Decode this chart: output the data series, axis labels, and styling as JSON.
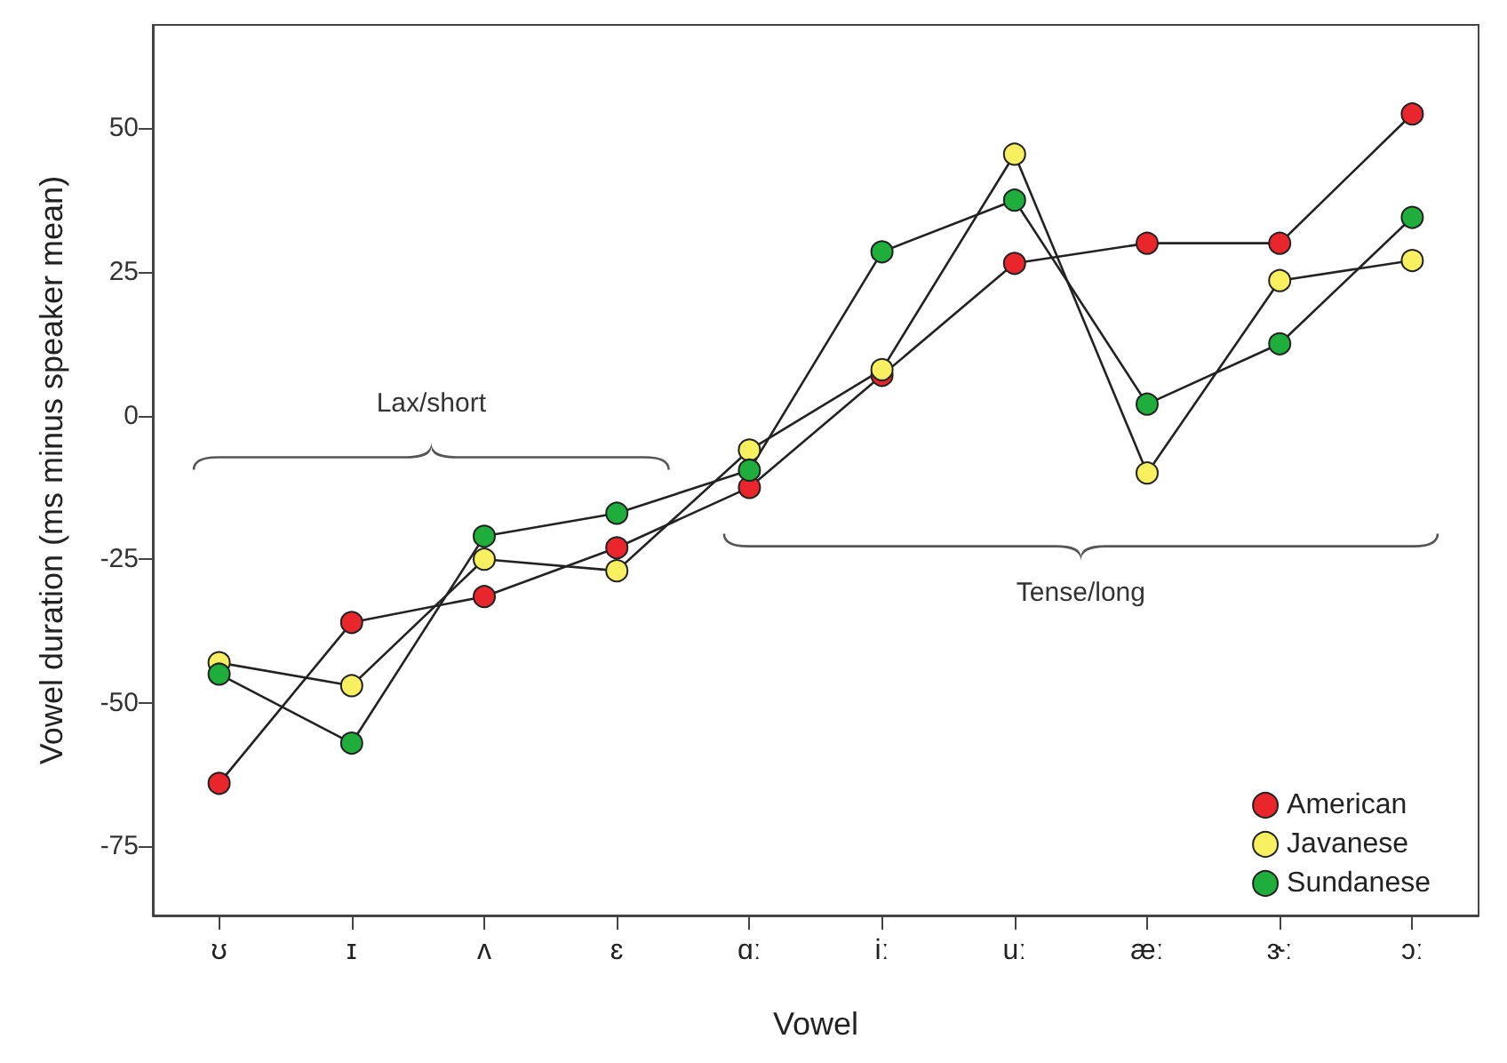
{
  "chart_data": {
    "type": "line",
    "xlabel": "Vowel",
    "ylabel": "Vowel duration (ms minus speaker mean)",
    "categories": [
      "ʊ",
      "ɪ",
      "ʌ",
      "ɛ",
      "ɑː",
      "iː",
      "uː",
      "æː",
      "ɝː",
      "ɔː"
    ],
    "series": [
      {
        "name": "American",
        "color": "#e8262b",
        "values": [
          -64,
          -36,
          -31.5,
          -23,
          -12.5,
          7,
          26.5,
          30,
          30,
          52.5
        ]
      },
      {
        "name": "Javanese",
        "color": "#f8f060",
        "values": [
          -43,
          -47,
          -25,
          -27,
          -6,
          8,
          45.5,
          -10,
          23.5,
          27
        ]
      },
      {
        "name": "Sundanese",
        "color": "#1fae3c",
        "values": [
          -45,
          -57,
          -21,
          -17,
          -9.5,
          28.5,
          37.5,
          2,
          12.5,
          34.5
        ]
      }
    ],
    "ylim": [
      -87,
      68
    ],
    "yticks": [
      -75,
      -50,
      -25,
      0,
      25,
      50
    ],
    "grid": false,
    "legend": "bottom right",
    "marker": "circle",
    "line_style": "solid",
    "annotations": [
      "Lax/short",
      "Tense/long"
    ]
  }
}
